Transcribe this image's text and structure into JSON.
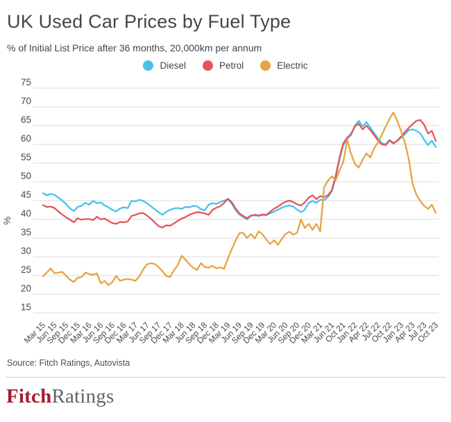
{
  "header": {
    "title": "UK Used Car Prices by Fuel Type",
    "subtitle": "% of Initial List Price after 36 months, 20,000km per annum"
  },
  "footer": {
    "source": "Source: Fitch Ratings, Autovista",
    "logo_fitch": "Fitch",
    "logo_ratings": "Ratings"
  },
  "chart_data": {
    "type": "line",
    "title": "UK Used Car Prices by Fuel Type",
    "subtitle": "% of Initial List Price after 36 months, 20,000km per annum",
    "xlabel": "",
    "ylabel": "%",
    "ylim": [
      15,
      75
    ],
    "ytick_step": 5,
    "yticks": [
      15,
      20,
      25,
      30,
      35,
      40,
      45,
      50,
      55,
      60,
      65,
      70,
      75
    ],
    "grid": "horizontal",
    "legend_position": "top-center",
    "x_tick_labels": [
      "Mar 15",
      "Jun 15",
      "Sep 15",
      "Dec 15",
      "Mar 16",
      "Jun 16",
      "Sep 16",
      "Dec 16",
      "Mar 17",
      "Jun 17",
      "Sep 17",
      "Dec 17",
      "Mar 18",
      "Jun 18",
      "Sep 18",
      "Dec 18",
      "Mar 19",
      "Jun 19",
      "Sep 19",
      "Dec 19",
      "Mar 20",
      "Jun 20",
      "Sep 20",
      "Dec 20",
      "Mar 21",
      "Jun 21",
      "Oct 21",
      "Jan 22",
      "Apr 22",
      "Jul 22",
      "Oct 22",
      "Jan 23",
      "Apr 23",
      "Jul 23",
      "Oct 23"
    ],
    "points_per_tick": 3,
    "frequency": "monthly",
    "series": [
      {
        "name": "Diesel",
        "color": "#47c2ea",
        "values": [
          47.0,
          46.4,
          46.8,
          46.5,
          45.8,
          45.0,
          44.1,
          42.9,
          42.2,
          43.3,
          43.6,
          44.4,
          43.9,
          44.9,
          44.3,
          44.5,
          43.7,
          43.2,
          42.5,
          42.1,
          42.9,
          43.2,
          43.0,
          44.9,
          44.8,
          45.2,
          44.9,
          44.3,
          43.5,
          42.7,
          41.9,
          41.2,
          42.0,
          42.5,
          42.9,
          43.0,
          42.8,
          43.3,
          43.2,
          43.6,
          43.5,
          42.7,
          42.4,
          43.9,
          44.3,
          44.1,
          44.6,
          45.0,
          45.3,
          44.2,
          42.5,
          41.3,
          40.6,
          40.0,
          40.9,
          41.1,
          40.9,
          41.2,
          41.1,
          41.6,
          42.0,
          42.6,
          43.1,
          43.5,
          43.7,
          43.4,
          42.6,
          41.9,
          42.6,
          44.4,
          44.9,
          44.4,
          45.2,
          45.1,
          45.9,
          47.5,
          51.0,
          56.0,
          59.8,
          61.5,
          62.5,
          65.0,
          66.3,
          64.8,
          65.9,
          64.5,
          63.0,
          61.5,
          60.3,
          60.0,
          61.2,
          60.4,
          60.9,
          61.8,
          62.7,
          63.8,
          64.0,
          63.6,
          62.9,
          61.2,
          59.8,
          61.0,
          59.3
        ]
      },
      {
        "name": "Petrol",
        "color": "#e4555a",
        "values": [
          43.8,
          43.3,
          43.4,
          43.0,
          42.1,
          41.3,
          40.5,
          39.9,
          39.2,
          40.3,
          39.9,
          40.1,
          40.1,
          39.8,
          40.7,
          40.0,
          40.2,
          39.6,
          39.0,
          38.8,
          39.3,
          39.2,
          39.4,
          40.9,
          41.2,
          41.6,
          41.7,
          41.0,
          40.2,
          39.2,
          38.2,
          37.8,
          38.4,
          38.3,
          38.9,
          39.6,
          40.2,
          40.6,
          41.2,
          41.6,
          41.9,
          41.8,
          41.6,
          41.2,
          42.5,
          43.1,
          43.5,
          44.3,
          45.5,
          44.6,
          42.9,
          41.6,
          40.9,
          40.3,
          41.0,
          41.2,
          41.0,
          41.3,
          41.2,
          42.0,
          42.8,
          43.4,
          44.1,
          44.7,
          45.0,
          44.6,
          44.0,
          43.7,
          44.5,
          45.8,
          46.4,
          45.4,
          46.2,
          45.9,
          46.4,
          47.8,
          51.5,
          56.5,
          60.3,
          61.8,
          62.8,
          64.8,
          65.5,
          64.0,
          65.0,
          63.8,
          62.5,
          61.0,
          60.0,
          59.8,
          61.0,
          60.2,
          61.0,
          62.1,
          63.3,
          64.4,
          65.4,
          66.3,
          66.5,
          65.2,
          62.9,
          63.6,
          60.9
        ]
      },
      {
        "name": "Electric",
        "color": "#e5a440",
        "values": [
          24.8,
          25.8,
          26.9,
          25.6,
          25.8,
          26.0,
          24.9,
          23.9,
          23.3,
          24.4,
          24.6,
          25.8,
          25.4,
          25.2,
          25.6,
          22.9,
          23.6,
          22.4,
          23.3,
          24.9,
          23.6,
          23.9,
          24.1,
          23.9,
          23.6,
          24.8,
          26.6,
          28.0,
          28.3,
          28.1,
          27.3,
          26.2,
          24.9,
          24.6,
          26.4,
          27.8,
          30.3,
          29.2,
          28.0,
          27.1,
          26.5,
          28.3,
          27.3,
          27.1,
          27.6,
          26.9,
          27.2,
          26.8,
          29.5,
          32.0,
          34.3,
          36.3,
          36.4,
          35.0,
          36.1,
          34.9,
          36.8,
          36.0,
          34.6,
          33.4,
          34.4,
          33.2,
          34.7,
          36.1,
          36.7,
          35.9,
          36.4,
          40.0,
          37.7,
          38.8,
          37.2,
          38.8,
          36.8,
          48.5,
          50.3,
          51.5,
          50.4,
          53.0,
          55.3,
          61.3,
          57.5,
          54.8,
          53.8,
          55.9,
          57.6,
          56.5,
          59.0,
          60.5,
          62.5,
          64.8,
          66.8,
          68.5,
          66.3,
          63.5,
          60.5,
          56.0,
          49.5,
          46.5,
          44.8,
          43.6,
          42.8,
          43.9,
          41.7
        ]
      }
    ]
  }
}
